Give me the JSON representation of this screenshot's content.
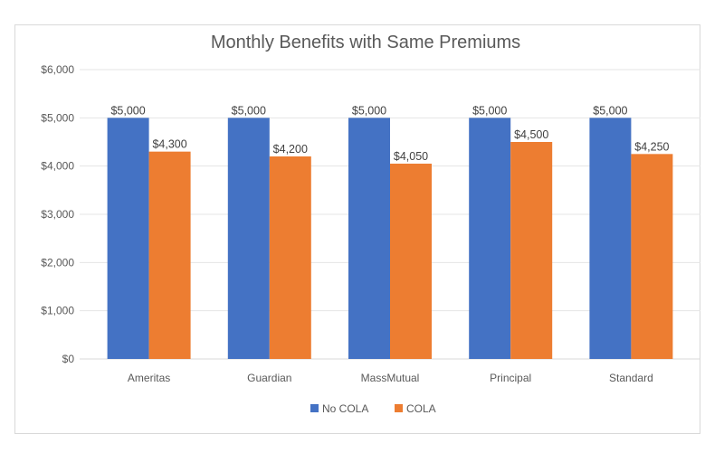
{
  "chart_data": {
    "type": "bar",
    "title": "Monthly Benefits with Same Premiums",
    "categories": [
      "Ameritas",
      "Guardian",
      "MassMutual",
      "Principal",
      "Standard"
    ],
    "series": [
      {
        "name": "No COLA",
        "color": "#4472c4",
        "values": [
          5000,
          5000,
          5000,
          5000,
          5000
        ],
        "labels": [
          "$5,000",
          "$5,000",
          "$5,000",
          "$5,000",
          "$5,000"
        ]
      },
      {
        "name": "COLA",
        "color": "#ed7d31",
        "values": [
          4300,
          4200,
          4050,
          4500,
          4250
        ],
        "labels": [
          "$4,300",
          "$4,200",
          "$4,050",
          "$4,500",
          "$4,250"
        ]
      }
    ],
    "ylim": [
      0,
      6000
    ],
    "yticks": [
      0,
      1000,
      2000,
      3000,
      4000,
      5000,
      6000
    ],
    "ytick_labels": [
      "$0",
      "$1,000",
      "$2,000",
      "$3,000",
      "$4,000",
      "$5,000",
      "$6,000"
    ],
    "grid": true,
    "legend_position": "bottom",
    "xlabel": "",
    "ylabel": ""
  }
}
